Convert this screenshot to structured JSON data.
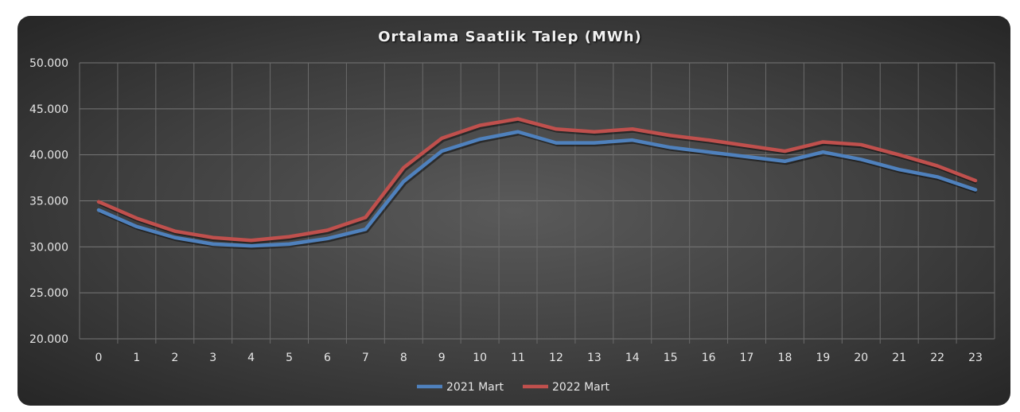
{
  "chart_data": {
    "type": "line",
    "title": "Ortalama Saatlik Talep (MWh)",
    "xlabel": "",
    "ylabel": "",
    "categories": [
      "0",
      "1",
      "2",
      "3",
      "4",
      "5",
      "6",
      "7",
      "8",
      "9",
      "10",
      "11",
      "12",
      "13",
      "14",
      "15",
      "16",
      "17",
      "18",
      "19",
      "20",
      "21",
      "22",
      "23"
    ],
    "ylim": [
      20000,
      50000
    ],
    "yticks": [
      20000,
      25000,
      30000,
      35000,
      40000,
      45000,
      50000
    ],
    "ytick_labels": [
      "20.000",
      "25.000",
      "30.000",
      "35.000",
      "40.000",
      "45.000",
      "50.000"
    ],
    "grid": true,
    "legend": "bottom",
    "series": [
      {
        "name": "2021 Mart",
        "color": "#4f81bd",
        "values": [
          34000,
          32200,
          31000,
          30300,
          30100,
          30300,
          30900,
          31900,
          37100,
          40400,
          41700,
          42500,
          41300,
          41300,
          41600,
          40800,
          40300,
          39800,
          39300,
          40300,
          39500,
          38400,
          37600,
          36200
        ]
      },
      {
        "name": "2022 Mart",
        "color": "#c0504d",
        "values": [
          34900,
          33100,
          31700,
          31000,
          30700,
          31100,
          31800,
          33200,
          38600,
          41800,
          43200,
          43900,
          42800,
          42500,
          42800,
          42100,
          41600,
          41000,
          40400,
          41400,
          41100,
          40000,
          38800,
          37200
        ]
      }
    ]
  }
}
